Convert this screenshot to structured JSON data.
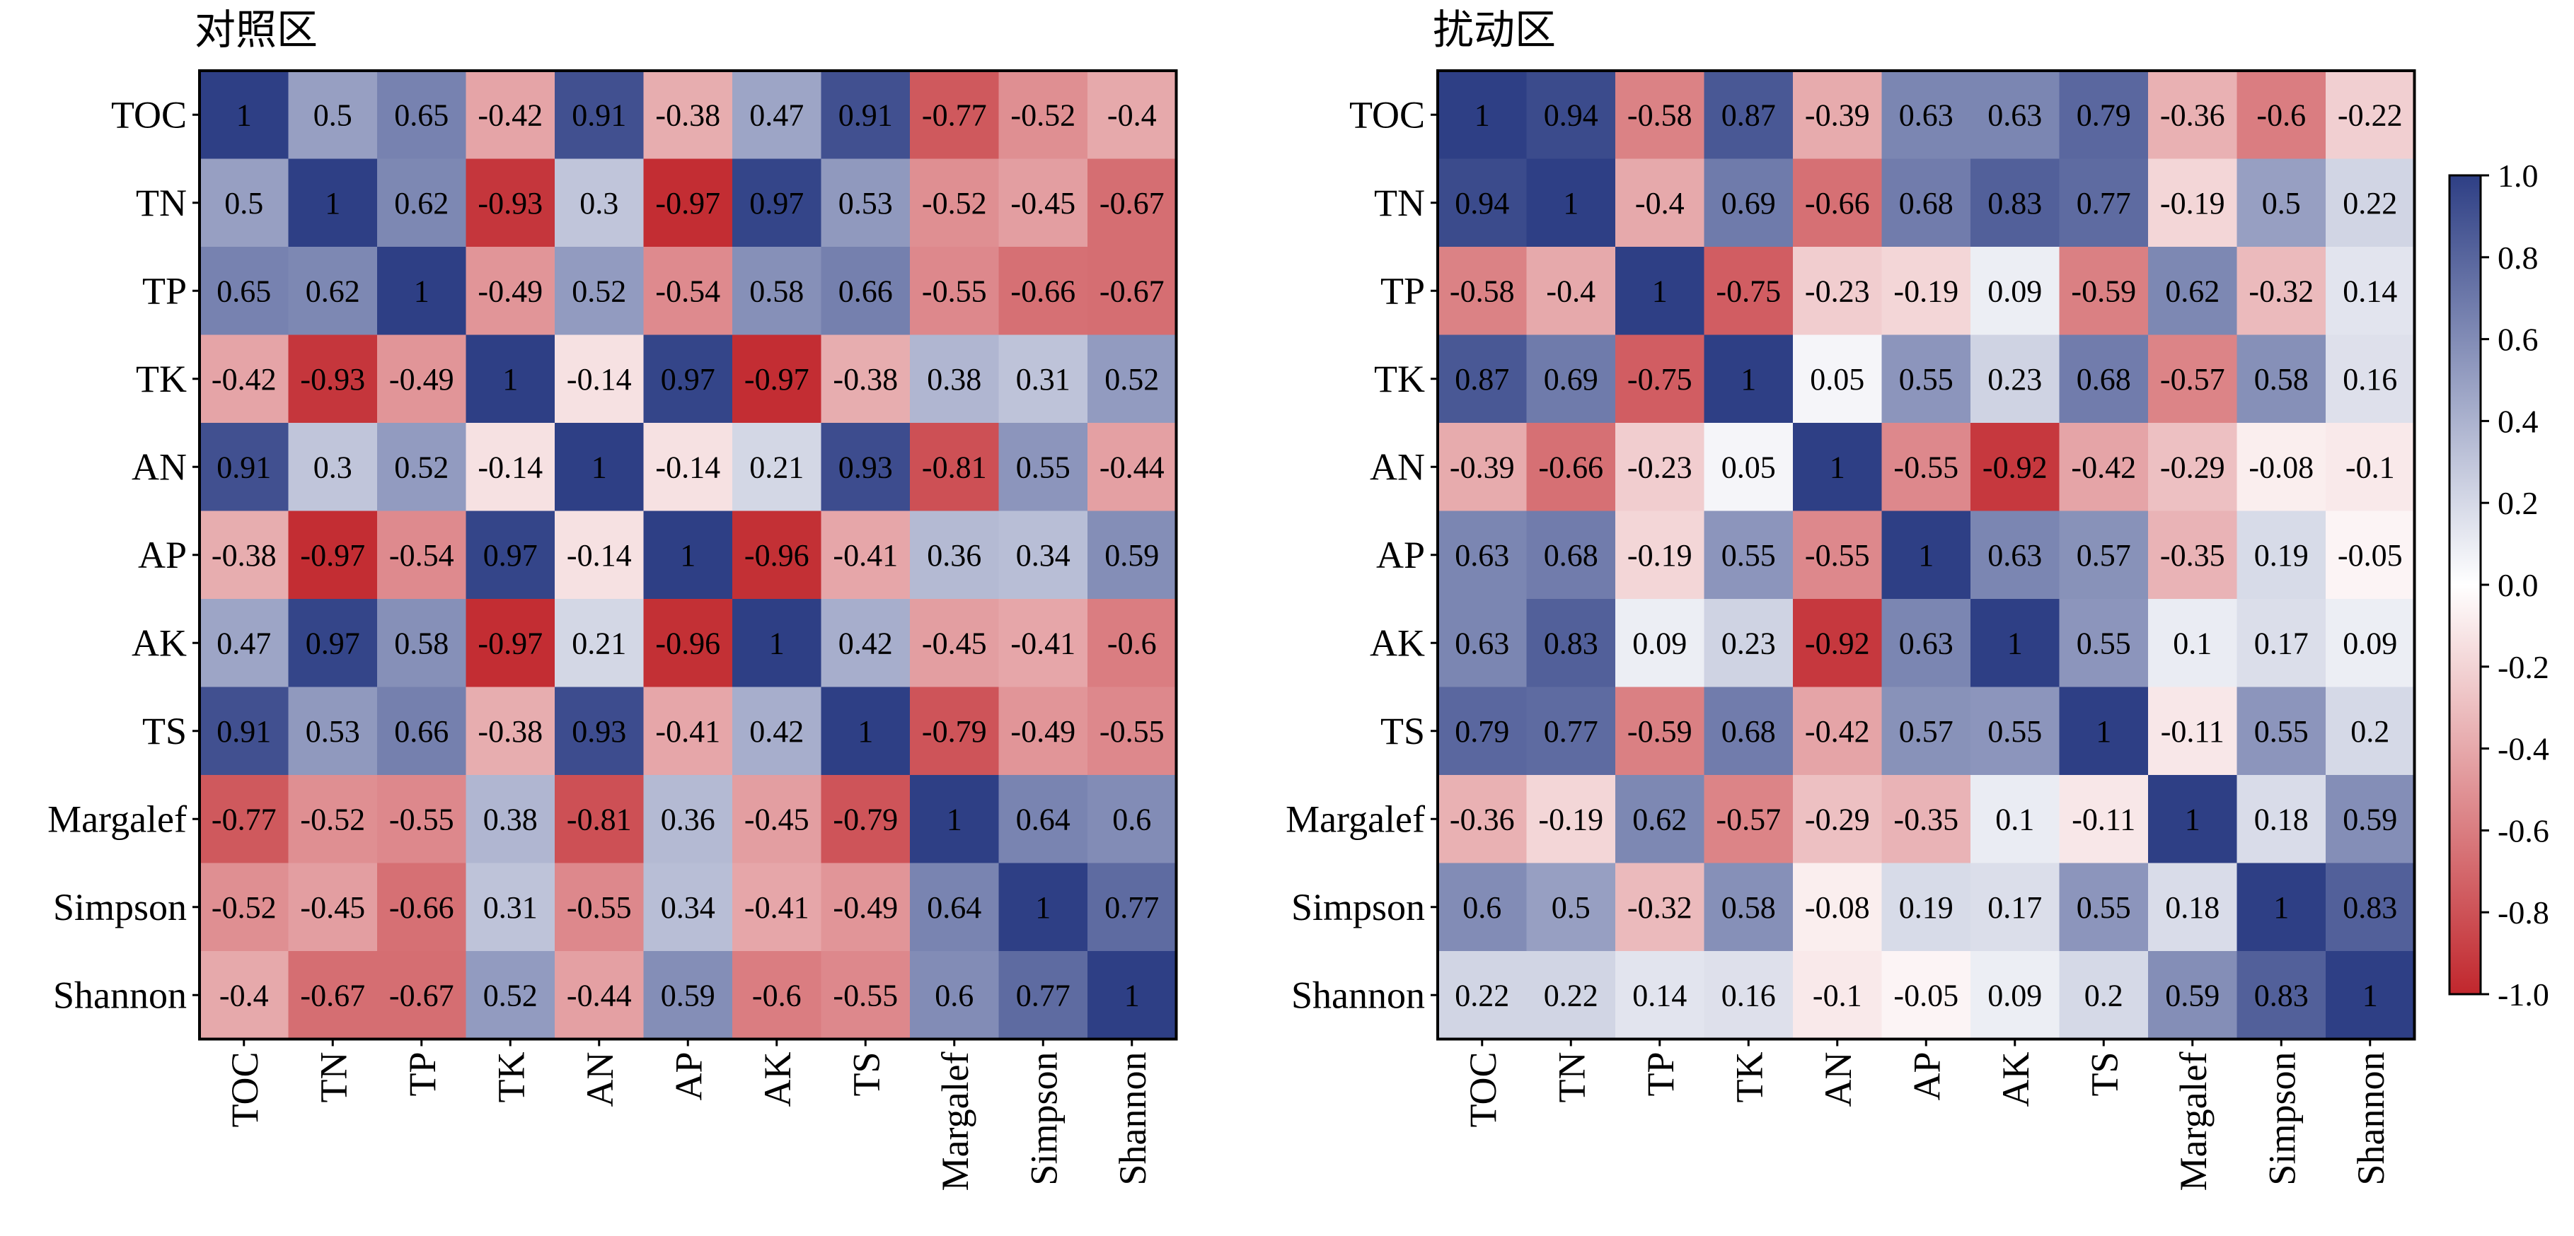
{
  "chart_data": [
    {
      "type": "heatmap",
      "title": "对照区",
      "variables": [
        "TOC",
        "TN",
        "TP",
        "TK",
        "AN",
        "AP",
        "AK",
        "TS",
        "Margalef",
        "Simpson",
        "Shannon"
      ],
      "values": [
        [
          1,
          0.5,
          0.65,
          -0.42,
          0.91,
          -0.38,
          0.47,
          0.91,
          -0.77,
          -0.52,
          -0.4
        ],
        [
          0.5,
          1,
          0.62,
          -0.93,
          0.3,
          -0.97,
          0.97,
          0.53,
          -0.52,
          -0.45,
          -0.67
        ],
        [
          0.65,
          0.62,
          1,
          -0.49,
          0.52,
          -0.54,
          0.58,
          0.66,
          -0.55,
          -0.66,
          -0.67
        ],
        [
          -0.42,
          -0.93,
          -0.49,
          1,
          -0.14,
          0.97,
          -0.97,
          -0.38,
          0.38,
          0.31,
          0.52
        ],
        [
          0.91,
          0.3,
          0.52,
          -0.14,
          1,
          -0.14,
          0.21,
          0.93,
          -0.81,
          0.55,
          -0.44
        ],
        [
          -0.38,
          -0.97,
          -0.54,
          0.97,
          -0.14,
          1,
          -0.96,
          -0.41,
          0.36,
          0.34,
          0.59
        ],
        [
          0.47,
          0.97,
          0.58,
          -0.97,
          0.21,
          -0.96,
          1,
          0.42,
          -0.45,
          -0.41,
          -0.6
        ],
        [
          0.91,
          0.53,
          0.66,
          -0.38,
          0.93,
          -0.41,
          0.42,
          1,
          -0.79,
          -0.49,
          -0.55
        ],
        [
          -0.77,
          -0.52,
          -0.55,
          0.38,
          -0.81,
          0.36,
          -0.45,
          -0.79,
          1,
          0.64,
          0.6
        ],
        [
          -0.52,
          -0.45,
          -0.66,
          0.31,
          -0.55,
          0.34,
          -0.41,
          -0.49,
          0.64,
          1,
          0.77
        ],
        [
          -0.4,
          -0.67,
          -0.67,
          0.52,
          -0.44,
          0.59,
          -0.6,
          -0.55,
          0.6,
          0.77,
          1
        ]
      ]
    },
    {
      "type": "heatmap",
      "title": "扰动区",
      "variables": [
        "TOC",
        "TN",
        "TP",
        "TK",
        "AN",
        "AP",
        "AK",
        "TS",
        "Margalef",
        "Simpson",
        "Shannon"
      ],
      "values": [
        [
          1,
          0.94,
          -0.58,
          0.87,
          -0.39,
          0.63,
          0.63,
          0.79,
          -0.36,
          -0.6,
          -0.22
        ],
        [
          0.94,
          1,
          -0.4,
          0.69,
          -0.66,
          0.68,
          0.83,
          0.77,
          -0.19,
          0.5,
          0.22
        ],
        [
          -0.58,
          -0.4,
          1,
          -0.75,
          -0.23,
          -0.19,
          0.09,
          -0.59,
          0.62,
          -0.32,
          0.14
        ],
        [
          0.87,
          0.69,
          -0.75,
          1,
          0.05,
          0.55,
          0.23,
          0.68,
          -0.57,
          0.58,
          0.16
        ],
        [
          -0.39,
          -0.66,
          -0.23,
          0.05,
          1,
          -0.55,
          -0.92,
          -0.42,
          -0.29,
          -0.08,
          -0.1
        ],
        [
          0.63,
          0.68,
          -0.19,
          0.55,
          -0.55,
          1,
          0.63,
          0.57,
          -0.35,
          0.19,
          -0.05
        ],
        [
          0.63,
          0.83,
          0.09,
          0.23,
          -0.92,
          0.63,
          1,
          0.55,
          0.1,
          0.17,
          0.09
        ],
        [
          0.79,
          0.77,
          -0.59,
          0.68,
          -0.42,
          0.57,
          0.55,
          1,
          -0.11,
          0.55,
          0.2
        ],
        [
          -0.36,
          -0.19,
          0.62,
          -0.57,
          -0.29,
          -0.35,
          0.1,
          -0.11,
          1,
          0.18,
          0.59
        ],
        [
          0.6,
          0.5,
          -0.32,
          0.58,
          -0.08,
          0.19,
          0.17,
          0.55,
          0.18,
          1,
          0.83
        ],
        [
          0.22,
          0.22,
          0.14,
          0.16,
          -0.1,
          -0.05,
          0.09,
          0.2,
          0.59,
          0.83,
          1
        ]
      ]
    }
  ],
  "colorbar": {
    "range": [
      -1.0,
      1.0
    ],
    "tick_labels": [
      "1.0",
      "0.8",
      "0.6",
      "0.4",
      "0.2",
      "0.0",
      "-0.2",
      "-0.4",
      "-0.6",
      "-0.8",
      "-1.0"
    ],
    "colors": {
      "low": "#C1272D",
      "mid": "#FFFFFF",
      "high": "#2E3F85"
    }
  }
}
